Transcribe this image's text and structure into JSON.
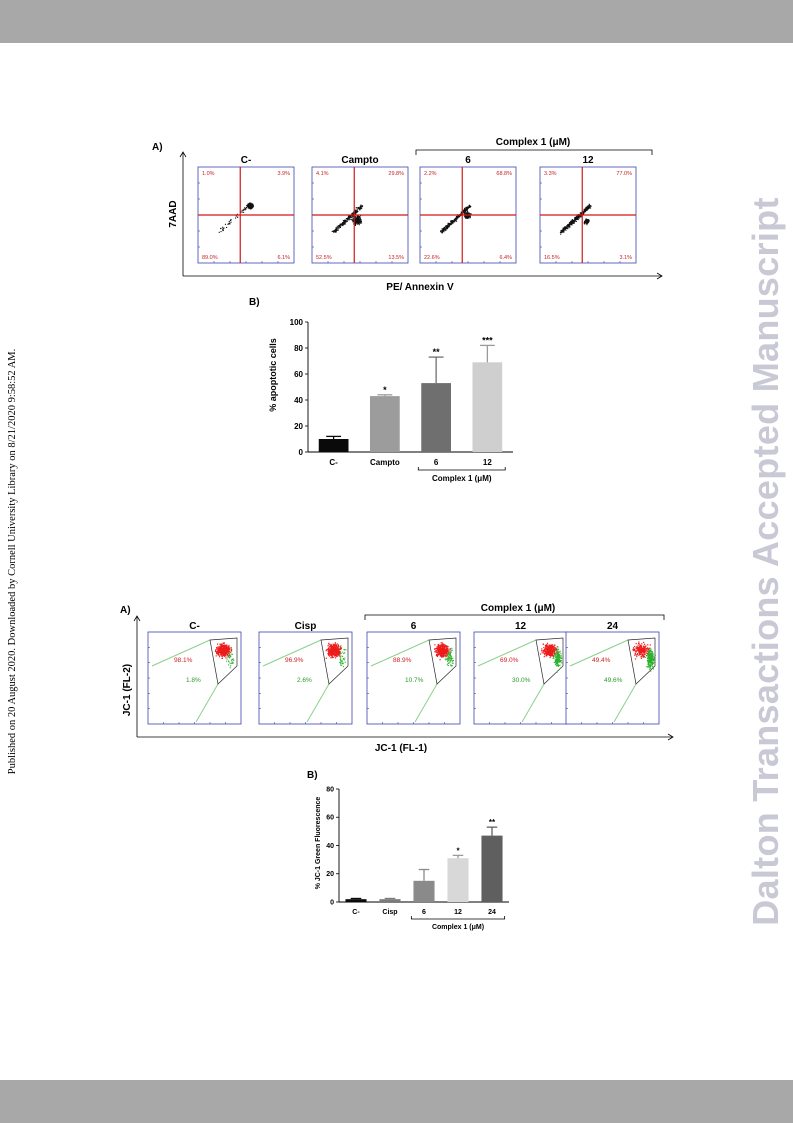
{
  "sidebar_text": "Published on 20 August 2020. Downloaded by Cornell University Library on 8/21/2020 9:58:52 AM.",
  "watermark": "Dalton Transactions Accepted Manuscript",
  "figure1": {
    "panel_a_label": "A)",
    "group_label": "Complex 1 (μM)",
    "y_axis": "7AAD",
    "x_axis": "PE/ Annexin V",
    "panels": [
      {
        "title": "C-",
        "tl": "1.0%",
        "tr": "3.9%",
        "bl": "89.0%",
        "br": "6.1%",
        "cx": 0.2,
        "cy": -0.2,
        "spread": 0.18,
        "tail": 0.1
      },
      {
        "title": "Campto",
        "tl": "4.1%",
        "tr": "29.8%",
        "bl": "52.5%",
        "br": "13.5%",
        "cx": 0.05,
        "cy": 0.1,
        "spread": 0.35,
        "tail": 0.6
      },
      {
        "title": "6",
        "tl": "2.2%",
        "tr": "68.8%",
        "bl": "22.6%",
        "br": "6.4%",
        "cx": 0.1,
        "cy": 0.0,
        "spread": 0.22,
        "tail": 0.7
      },
      {
        "title": "12",
        "tl": "3.3%",
        "tr": "77.0%",
        "bl": "16.5%",
        "br": "3.1%",
        "cx": 0.08,
        "cy": 0.12,
        "spread": 0.2,
        "tail": 0.8
      }
    ],
    "panel_b_label": "B)",
    "bar_ylabel": "% apoptotic cells",
    "bar_group_label": "Complex 1 (μM)"
  },
  "figure2": {
    "panel_a_label": "A)",
    "group_label": "Complex 1 (μM)",
    "y_axis": "JC-1 (FL-2)",
    "x_axis": "JC-1 (FL-1)",
    "panels": [
      {
        "title": "C-",
        "red": "98.1%",
        "green": "1.8%",
        "g": 0.02
      },
      {
        "title": "Cisp",
        "red": "96.9%",
        "green": "2.6%",
        "g": 0.03
      },
      {
        "title": "6",
        "red": "88.9%",
        "green": "10.7%",
        "g": 0.11
      },
      {
        "title": "12",
        "red": "69.0%",
        "green": "30.0%",
        "g": 0.3
      },
      {
        "title": "24",
        "red": "49.4%",
        "green": "49.6%",
        "g": 0.5
      }
    ],
    "panel_b_label": "B)",
    "bar_ylabel": "% JC-1 Green Fluorescence",
    "bar_group_label": "Complex 1 (μM)"
  },
  "chart_data": [
    {
      "type": "bar",
      "title": "",
      "xlabel": "",
      "ylabel": "% apoptotic cells",
      "categories": [
        "C-",
        "Campto",
        "6",
        "12"
      ],
      "values": [
        10,
        43,
        53,
        69
      ],
      "errors": [
        2,
        1,
        20,
        13
      ],
      "significance": [
        "",
        "*",
        "**",
        "***"
      ],
      "colors": [
        "#0a0a0a",
        "#9c9c9c",
        "#6f6f6f",
        "#cfcfcf"
      ],
      "ylim": [
        0,
        100
      ],
      "yticks": [
        0,
        20,
        40,
        60,
        80,
        100
      ],
      "group_bracket": {
        "label": "Complex 1 (μM)",
        "from": "6",
        "to": "12"
      }
    },
    {
      "type": "bar",
      "title": "",
      "xlabel": "",
      "ylabel": "% JC-1 Green Fluorescence",
      "categories": [
        "C-",
        "Cisp",
        "6",
        "12",
        "24"
      ],
      "values": [
        2,
        2,
        15,
        31,
        47
      ],
      "errors": [
        0.5,
        0.5,
        8,
        2,
        6
      ],
      "significance": [
        "",
        "",
        "",
        "*",
        "**"
      ],
      "colors": [
        "#0a0a0a",
        "#7a7a7a",
        "#8a8a8a",
        "#d8d8d8",
        "#5f5f5f"
      ],
      "ylim": [
        0,
        80
      ],
      "yticks": [
        0,
        20,
        40,
        60,
        80
      ],
      "group_bracket": {
        "label": "Complex 1 (μM)",
        "from": "6",
        "to": "24"
      }
    }
  ]
}
